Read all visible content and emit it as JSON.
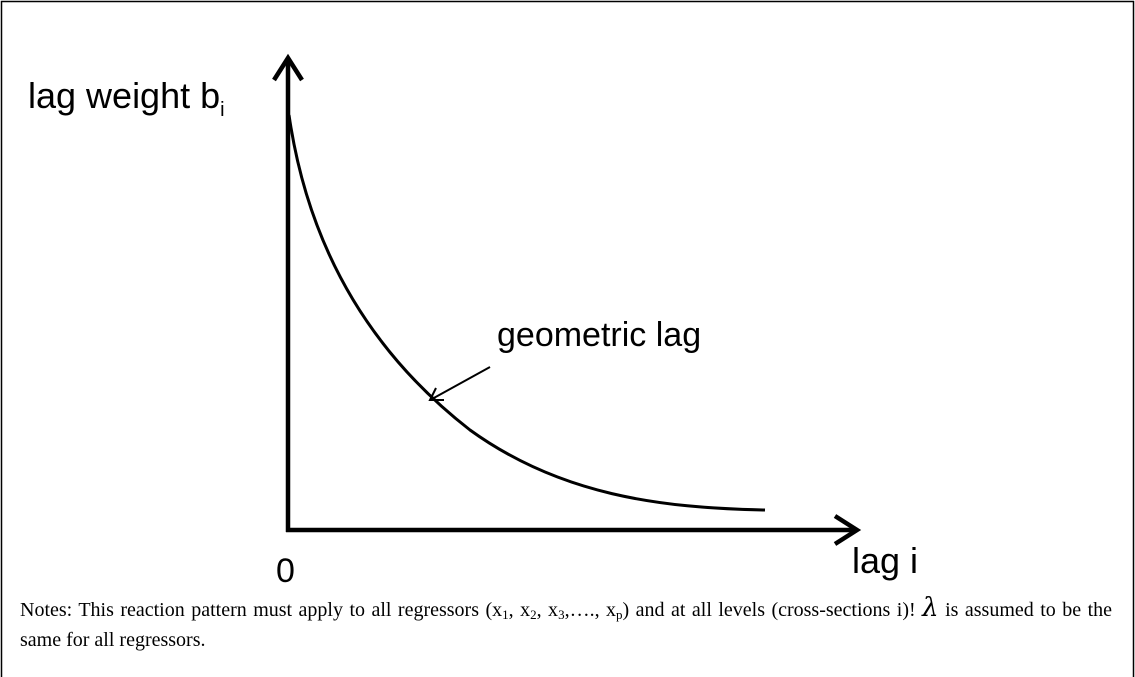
{
  "diagram": {
    "y_axis_label": {
      "text": "lag weight b",
      "subscript": "i"
    },
    "x_axis_label": "lag i",
    "origin_label": "0",
    "curve_label": "geometric lag"
  },
  "notes": {
    "parts": [
      "Notes: This reaction pattern must apply to all regressors (x",
      "1",
      ", x",
      "2",
      ", x",
      "3",
      ",…., x",
      "p",
      ") and at all levels (cross-sections i)! ",
      "λ",
      " is assumed to be the same for all regressors."
    ]
  }
}
